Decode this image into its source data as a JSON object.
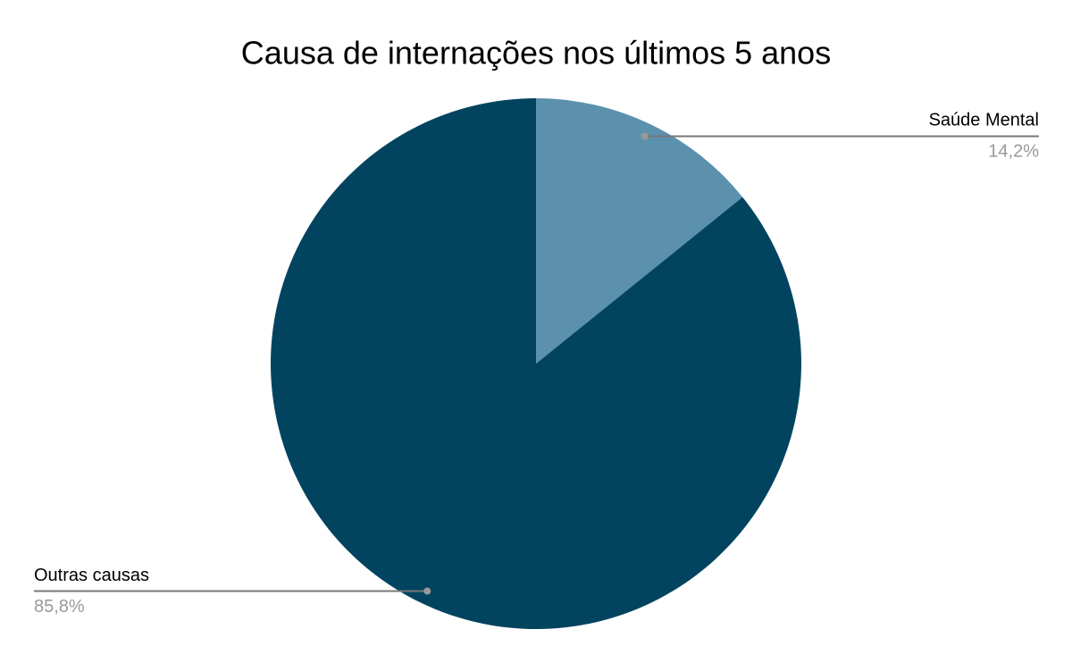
{
  "chart_data": {
    "type": "pie",
    "title": "Causa de internações nos últimos 5 anos",
    "categories": [
      "Saúde Mental",
      "Outras causas"
    ],
    "values": [
      14.2,
      85.8
    ],
    "value_labels": [
      "14,2%",
      "85,8%"
    ],
    "colors": [
      "#5b91ad",
      "#02445f"
    ]
  }
}
